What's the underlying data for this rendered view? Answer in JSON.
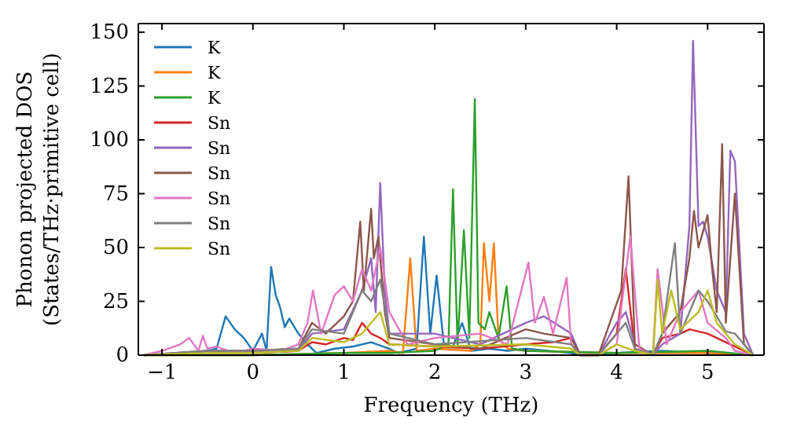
{
  "chart_data": {
    "type": "line",
    "xlabel": "Frequency (THz)",
    "ylabel": "Phonon projected DOS\n(States/THz·primitive cell)",
    "xlim": [
      -1.26,
      5.62
    ],
    "ylim": [
      0,
      154
    ],
    "xticks": [
      {
        "value": -1,
        "label": "−1"
      },
      0,
      1,
      2,
      3,
      4,
      5
    ],
    "yticks": [
      0,
      25,
      50,
      75,
      100,
      125,
      150
    ],
    "legend": "top left",
    "grid": false,
    "series": [
      {
        "name": "K",
        "color": "#1f77b4",
        "x": [
          -1.2,
          -0.6,
          -0.4,
          -0.3,
          -0.2,
          -0.1,
          0,
          0.1,
          0.15,
          0.2,
          0.25,
          0.3,
          0.35,
          0.4,
          0.5,
          0.6,
          0.7,
          0.9,
          1.1,
          1.3,
          1.5,
          1.6,
          1.7,
          1.8,
          1.88,
          1.95,
          2.02,
          2.1,
          2.2,
          2.3,
          2.4,
          2.6,
          2.8,
          3.0,
          3.5,
          3.6,
          3.8,
          4.0,
          4.5,
          5.0,
          5.5
        ],
        "values": [
          0,
          1,
          3,
          18,
          12,
          8,
          2,
          10,
          2,
          41,
          28,
          22,
          13,
          17,
          10,
          5,
          1,
          3,
          4,
          6,
          3,
          1,
          2,
          3,
          55,
          10,
          37,
          5,
          4,
          15,
          2,
          3,
          2,
          3,
          1,
          0,
          0,
          1,
          2,
          1,
          0
        ]
      },
      {
        "name": "K",
        "color": "#ff7f0e",
        "x": [
          -1.2,
          0,
          1,
          1.5,
          1.65,
          1.73,
          1.8,
          2.0,
          2.4,
          2.5,
          2.54,
          2.6,
          2.65,
          2.7,
          2.8,
          3.0,
          4,
          5,
          5.5
        ],
        "values": [
          0,
          0,
          1,
          2,
          1,
          45,
          2,
          3,
          2,
          5,
          52,
          25,
          52,
          8,
          3,
          2,
          1,
          1,
          0
        ]
      },
      {
        "name": "K",
        "color": "#2ca02c",
        "x": [
          -1.2,
          0,
          1,
          1.5,
          2.0,
          2.15,
          2.2,
          2.25,
          2.32,
          2.38,
          2.44,
          2.48,
          2.55,
          2.6,
          2.7,
          2.79,
          2.85,
          3.0,
          4,
          5,
          5.5
        ],
        "values": [
          0,
          0,
          1,
          1,
          2,
          5,
          77,
          5,
          58,
          8,
          119,
          15,
          12,
          20,
          8,
          32,
          3,
          2,
          1,
          2,
          0
        ]
      },
      {
        "name": "Sn",
        "color": "#d62728",
        "x": [
          0,
          0.5,
          0.65,
          0.8,
          1.0,
          1.1,
          1.2,
          1.3,
          1.4,
          1.5,
          2.0,
          2.5,
          3.0,
          3.3,
          3.5,
          3.6,
          3.8,
          4.0,
          4.1,
          4.2,
          4.4,
          4.5,
          4.7,
          4.8,
          5.0,
          5.2,
          5.4,
          5.5
        ],
        "values": [
          1,
          2,
          6,
          5,
          8,
          7,
          15,
          10,
          8,
          5,
          4,
          3,
          5,
          6,
          8,
          0,
          0,
          10,
          40,
          3,
          0,
          8,
          10,
          12,
          10,
          6,
          2,
          0
        ]
      },
      {
        "name": "Sn",
        "color": "#9467bd",
        "x": [
          -1.2,
          -0.5,
          0,
          0.5,
          0.65,
          1.0,
          1.2,
          1.3,
          1.35,
          1.4,
          1.45,
          1.5,
          2.0,
          2.5,
          3.0,
          3.2,
          3.5,
          3.6,
          3.8,
          4.0,
          4.1,
          4.2,
          4.4,
          4.5,
          4.7,
          4.8,
          4.84,
          4.9,
          4.95,
          5.0,
          5.1,
          5.2,
          5.25,
          5.3,
          5.4,
          5.5
        ],
        "values": [
          0,
          1,
          1,
          2,
          10,
          12,
          30,
          45,
          20,
          80,
          30,
          10,
          10,
          5,
          15,
          18,
          10,
          0,
          0,
          15,
          20,
          5,
          0,
          5,
          10,
          60,
          146,
          60,
          62,
          55,
          30,
          20,
          95,
          90,
          10,
          0
        ]
      },
      {
        "name": "Sn",
        "color": "#8c564b",
        "x": [
          -1.2,
          -0.5,
          0,
          0.5,
          0.65,
          0.8,
          1.0,
          1.1,
          1.18,
          1.22,
          1.3,
          1.33,
          1.38,
          1.45,
          1.5,
          2.0,
          2.5,
          3.0,
          3.2,
          3.5,
          3.6,
          3.8,
          3.95,
          4.05,
          4.13,
          4.2,
          4.4,
          4.5,
          4.6,
          4.7,
          4.8,
          4.85,
          4.9,
          5.0,
          5.05,
          5.1,
          5.16,
          5.2,
          5.3,
          5.4,
          5.5
        ],
        "values": [
          0,
          2,
          2,
          3,
          15,
          10,
          18,
          25,
          62,
          30,
          68,
          45,
          55,
          20,
          8,
          5,
          3,
          12,
          10,
          8,
          0,
          0,
          18,
          30,
          83,
          5,
          0,
          10,
          15,
          20,
          45,
          67,
          50,
          65,
          40,
          20,
          98,
          15,
          75,
          5,
          0
        ]
      },
      {
        "name": "Sn",
        "color": "#e377c2",
        "x": [
          -1.2,
          -1.0,
          -0.8,
          -0.7,
          -0.6,
          -0.55,
          -0.5,
          -0.4,
          -0.2,
          0,
          0.3,
          0.5,
          0.6,
          0.66,
          0.75,
          0.9,
          1.0,
          1.1,
          1.2,
          1.3,
          1.4,
          1.5,
          1.7,
          2.0,
          2.5,
          2.8,
          3.03,
          3.1,
          3.2,
          3.3,
          3.45,
          3.5,
          3.6,
          3.8,
          4.0,
          4.15,
          4.25,
          4.4,
          4.45,
          4.55,
          4.7,
          4.9,
          5.0,
          5.2,
          5.3,
          5.5
        ],
        "values": [
          0,
          2,
          5,
          8,
          2,
          9,
          3,
          4,
          1,
          3,
          2,
          5,
          15,
          30,
          10,
          28,
          32,
          25,
          40,
          30,
          50,
          20,
          5,
          8,
          10,
          5,
          43,
          15,
          27,
          10,
          36,
          5,
          0,
          0,
          5,
          55,
          3,
          0,
          40,
          5,
          20,
          30,
          15,
          8,
          2,
          0
        ]
      },
      {
        "name": "Sn",
        "color": "#7f7f7f",
        "x": [
          -1.2,
          -0.5,
          0,
          0.5,
          0.65,
          1.0,
          1.2,
          1.3,
          1.4,
          1.5,
          2.0,
          3.0,
          3.5,
          3.6,
          3.8,
          4.0,
          4.1,
          4.2,
          4.4,
          4.5,
          4.64,
          4.7,
          4.9,
          5.0,
          5.2,
          5.3,
          5.5
        ],
        "values": [
          0,
          2,
          2,
          3,
          12,
          10,
          30,
          25,
          35,
          10,
          5,
          8,
          5,
          0,
          0,
          10,
          15,
          3,
          0,
          10,
          52,
          10,
          30,
          25,
          11,
          10,
          0
        ]
      },
      {
        "name": "Sn",
        "color": "#bcbd22",
        "x": [
          -1.2,
          -0.5,
          0,
          0.5,
          0.65,
          1.0,
          1.2,
          1.4,
          1.5,
          2.0,
          3.0,
          3.5,
          3.6,
          3.8,
          4.0,
          4.2,
          4.4,
          4.45,
          4.5,
          4.6,
          4.7,
          4.9,
          5.0,
          5.1,
          5.3,
          5.5
        ],
        "values": [
          0,
          1,
          1,
          2,
          8,
          6,
          10,
          20,
          5,
          4,
          5,
          3,
          0,
          0,
          5,
          2,
          0,
          35,
          10,
          30,
          12,
          20,
          30,
          15,
          5,
          0
        ]
      }
    ]
  }
}
